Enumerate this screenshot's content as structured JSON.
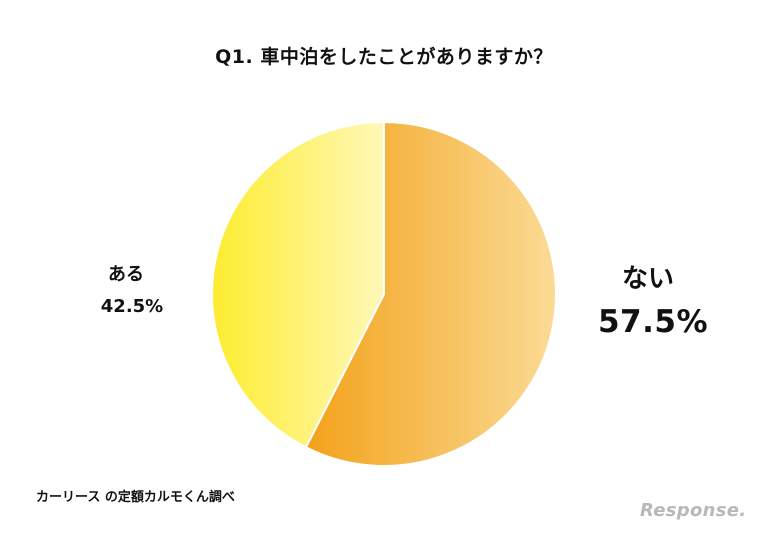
{
  "chart_data": {
    "type": "pie",
    "title": "Q1. 車中泊をしたことがありますか？",
    "slices": [
      {
        "label": "ない",
        "value": 57.5,
        "display": "57.5%",
        "color_start": "#f3a21a",
        "color_end": "#fadb96"
      },
      {
        "label": "ある",
        "value": 42.5,
        "display": "42.5%",
        "color_start": "#fdec30",
        "color_end": "#fff8b8"
      }
    ],
    "start_angle": "12 o'clock",
    "direction": "clockwise"
  },
  "source": "カーリース の定額カルモくん調べ",
  "logo": "Response."
}
